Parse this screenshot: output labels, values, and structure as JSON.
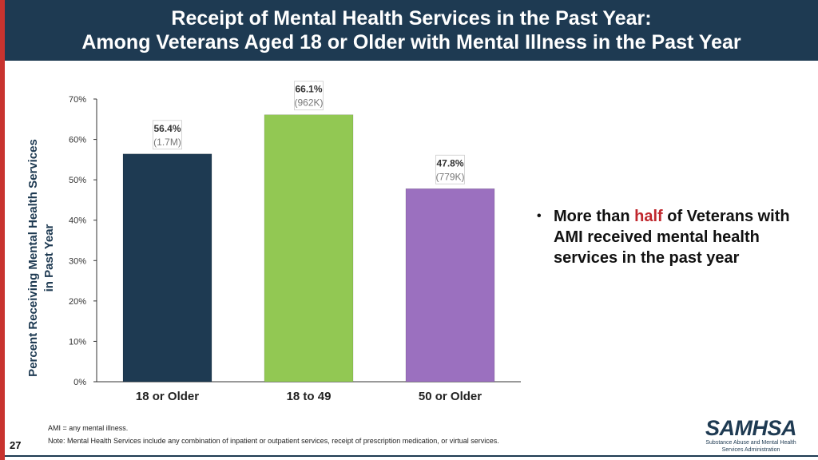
{
  "header": {
    "title_line1": "Receipt of Mental Health Services in the Past Year:",
    "title_line2": "Among Veterans Aged 18 or Older with Mental Illness in the Past Year"
  },
  "chart_data": {
    "type": "bar",
    "title": "Receipt of Mental Health Services in the Past Year: Among Veterans Aged 18 or Older with Mental Illness in the Past Year",
    "ylabel_line1": "Percent Receiving Mental Health Services",
    "ylabel_line2": "in Past Year",
    "xlabel": "",
    "ylim": [
      0,
      70
    ],
    "yticks": [
      0,
      10,
      20,
      30,
      40,
      50,
      60,
      70
    ],
    "ytick_labels": [
      "0%",
      "10%",
      "20%",
      "30%",
      "40%",
      "50%",
      "60%",
      "70%"
    ],
    "categories": [
      "18 or Older",
      "18 to 49",
      "50 or Older"
    ],
    "values": [
      56.4,
      66.1,
      47.8
    ],
    "value_labels": [
      "56.4%",
      "66.1%",
      "47.8%"
    ],
    "count_labels": [
      "(1.7M)",
      "(962K)",
      "(779K)"
    ],
    "colors": [
      "#1e3a52",
      "#92c853",
      "#9b70bf"
    ]
  },
  "bullet": {
    "before": "More than ",
    "highlight": "half",
    "after": " of Veterans with AMI received mental health services in the past year",
    "highlight_color": "#c0272d"
  },
  "notes": {
    "ami": "AMI = any mental illness.",
    "note": "Note: Mental Health Services include any combination of inpatient or outpatient services, receipt of prescription medication, or virtual services."
  },
  "page_number": "27",
  "logo": {
    "name": "SAMHSA",
    "subtitle_line1": "Substance Abuse and Mental Health",
    "subtitle_line2": "Services Administration"
  }
}
